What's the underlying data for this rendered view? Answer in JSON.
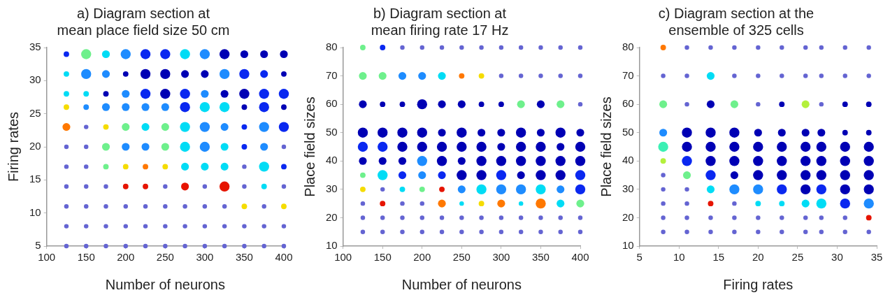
{
  "chart_data": [
    {
      "type": "bubble",
      "title": "a) Diagram section at\nmean place field size 50 cm",
      "xlabel": "Number of neurons",
      "ylabel": "Firing rates",
      "marker": "circle",
      "grid": false,
      "xlim": [
        100,
        400
      ],
      "xticks": [
        100,
        150,
        200,
        250,
        300,
        350,
        400
      ],
      "ylim": [
        5,
        35
      ],
      "yticks": [
        5,
        10,
        15,
        20,
        25,
        30,
        35
      ],
      "x": [
        125,
        150,
        175,
        200,
        225,
        250,
        275,
        300,
        325,
        350,
        375,
        400
      ],
      "series": [
        {
          "values": [
            34,
            34,
            34,
            34,
            34,
            34,
            34,
            34,
            34,
            34,
            34,
            34
          ],
          "sizes": [
            0.3,
            1,
            0.6,
            1,
            1,
            1,
            1,
            1,
            1,
            0.6,
            0.6,
            0.6
          ],
          "colors": [
            "#0a28f0",
            "#6ef08c",
            "#00dcf5",
            "#1e8cff",
            "#0a28f0",
            "#0a28f0",
            "#00dcf5",
            "#1e8cff",
            "#0000b4",
            "#0000b4",
            "#0000b4",
            "#0000b4"
          ]
        },
        {
          "values": [
            31,
            31,
            31,
            31,
            31,
            31,
            31,
            31,
            31,
            31,
            31,
            31
          ],
          "sizes": [
            0.3,
            1,
            0.6,
            0.3,
            1,
            1,
            0.6,
            0.6,
            1,
            1,
            0.6,
            0.3
          ],
          "colors": [
            "#00dcf5",
            "#1e8cff",
            "#1e8cff",
            "#0000b4",
            "#0000b4",
            "#0000b4",
            "#0000b4",
            "#0000b4",
            "#1e8cff",
            "#0a28f0",
            "#0a28f0",
            "#0000b4"
          ]
        },
        {
          "values": [
            28,
            28,
            28,
            28,
            28,
            28,
            28,
            28,
            28,
            28,
            28,
            28
          ],
          "sizes": [
            0.3,
            0.3,
            0.3,
            0.6,
            1,
            1,
            1,
            0.6,
            0.6,
            1,
            1,
            1
          ],
          "colors": [
            "#00dcf5",
            "#00dcf5",
            "#0000b4",
            "#1e8cff",
            "#0a28f0",
            "#0000b4",
            "#0a28f0",
            "#1e8cff",
            "#0000b4",
            "#0000b4",
            "#0a28f0",
            "#0a28f0"
          ]
        },
        {
          "values": [
            26,
            26,
            26,
            26,
            26,
            26,
            26,
            26,
            26,
            26,
            26,
            26
          ],
          "sizes": [
            0.3,
            0.3,
            0.6,
            0.6,
            0.6,
            0.6,
            1,
            1,
            1,
            0.3,
            1,
            0.3
          ],
          "colors": [
            "#f5dc00",
            "#1e8cff",
            "#1e8cff",
            "#1e8cff",
            "#1e8cff",
            "#1e8cff",
            "#0a28f0",
            "#00dcf5",
            "#00dcf5",
            "#0000b4",
            "#0a28f0",
            "#0000b4"
          ]
        },
        {
          "values": [
            23,
            23,
            23,
            23,
            23,
            23,
            23,
            23,
            23,
            23,
            23,
            23
          ],
          "sizes": [
            0.6,
            0.2,
            0.3,
            0.6,
            0.6,
            0.6,
            1,
            1,
            0.6,
            0.3,
            1,
            1
          ],
          "colors": [
            "#ff7800",
            "#6464d2",
            "#f5dc00",
            "#6ef08c",
            "#00dcf5",
            "#6ef08c",
            "#00dcf5",
            "#1e8cff",
            "#1e8cff",
            "#0a28f0",
            "#1e8cff",
            "#0a28f0"
          ]
        },
        {
          "values": [
            20,
            20,
            20,
            20,
            20,
            20,
            20,
            20,
            20,
            20,
            20,
            20
          ],
          "sizes": [
            0.2,
            0.2,
            0.6,
            0.6,
            0.6,
            0.6,
            1,
            1,
            0.6,
            0.3,
            0.6,
            0.2
          ],
          "colors": [
            "#6464d2",
            "#6464d2",
            "#6ef08c",
            "#1e8cff",
            "#1e8cff",
            "#6ef08c",
            "#00dcf5",
            "#1e8cff",
            "#00dcf5",
            "#0a28f0",
            "#1e8cff",
            "#6464d2"
          ]
        },
        {
          "values": [
            17,
            17,
            17,
            17,
            17,
            17,
            17,
            17,
            17,
            17,
            17,
            17
          ],
          "sizes": [
            0.2,
            0.2,
            0.3,
            0.3,
            0.3,
            0.3,
            0.6,
            0.6,
            0.6,
            0.2,
            1,
            0.3
          ],
          "colors": [
            "#6464d2",
            "#6464d2",
            "#6ef08c",
            "#f5dc00",
            "#ff7800",
            "#f5dc00",
            "#00dcf5",
            "#00dcf5",
            "#00dcf5",
            "#6464d2",
            "#00dcf5",
            "#0a28f0"
          ]
        },
        {
          "values": [
            14,
            14,
            14,
            14,
            14,
            14,
            14,
            14,
            14,
            14,
            14,
            14
          ],
          "sizes": [
            0.2,
            0.2,
            0.2,
            0.3,
            0.3,
            0.2,
            0.6,
            0.2,
            1,
            0.2,
            0.3,
            0.2
          ],
          "colors": [
            "#6464d2",
            "#6464d2",
            "#6464d2",
            "#e61400",
            "#e61400",
            "#6464d2",
            "#e61400",
            "#6464d2",
            "#e61400",
            "#6464d2",
            "#00dcf5",
            "#6464d2"
          ]
        },
        {
          "values": [
            11,
            11,
            11,
            11,
            11,
            11,
            11,
            11,
            11,
            11,
            11,
            11
          ],
          "sizes": [
            0.2,
            0.2,
            0.2,
            0.2,
            0.2,
            0.2,
            0.2,
            0.2,
            0.2,
            0.3,
            0.2,
            0.3
          ],
          "colors": [
            "#6464d2",
            "#6464d2",
            "#6464d2",
            "#6464d2",
            "#6464d2",
            "#6464d2",
            "#6464d2",
            "#6464d2",
            "#6464d2",
            "#f5dc00",
            "#6464d2",
            "#f5dc00"
          ]
        },
        {
          "values": [
            8,
            8,
            8,
            8,
            8,
            8,
            8,
            8,
            8,
            8,
            8,
            8
          ],
          "sizes": [
            0.2,
            0.2,
            0.2,
            0.2,
            0.2,
            0.2,
            0.2,
            0.2,
            0.2,
            0.2,
            0.2,
            0.2
          ],
          "colors": [
            "#6464d2",
            "#6464d2",
            "#6464d2",
            "#6464d2",
            "#6464d2",
            "#6464d2",
            "#6464d2",
            "#6464d2",
            "#6464d2",
            "#6464d2",
            "#6464d2",
            "#6464d2"
          ]
        },
        {
          "values": [
            5,
            5,
            5,
            5,
            5,
            5,
            5,
            5,
            5,
            5,
            5,
            5
          ],
          "sizes": [
            0.2,
            0.2,
            0.2,
            0.2,
            0.2,
            0.2,
            0.2,
            0.2,
            0.2,
            0.2,
            0.2,
            0.2
          ],
          "colors": [
            "#6464d2",
            "#6464d2",
            "#6464d2",
            "#6464d2",
            "#6464d2",
            "#6464d2",
            "#6464d2",
            "#6464d2",
            "#6464d2",
            "#6464d2",
            "#6464d2",
            "#6464d2"
          ]
        }
      ]
    },
    {
      "type": "bubble",
      "title": "b) Diagram section at\nmean firing rate 17 Hz",
      "xlabel": "Number of neurons",
      "ylabel": "Place field sizes",
      "marker": "circle",
      "grid": false,
      "xlim": [
        100,
        400
      ],
      "xticks": [
        100,
        150,
        200,
        250,
        300,
        350,
        400
      ],
      "ylim": [
        10,
        80
      ],
      "yticks": [
        10,
        20,
        30,
        40,
        50,
        60,
        70,
        80
      ],
      "x": [
        125,
        150,
        175,
        200,
        225,
        250,
        275,
        300,
        325,
        350,
        375,
        400
      ],
      "series": [
        {
          "values": [
            80,
            80,
            80,
            80,
            80,
            80,
            80,
            80,
            80,
            80,
            80,
            80
          ],
          "sizes": [
            0.3,
            0.3,
            0.2,
            0.2,
            0.2,
            0.2,
            0.2,
            0.2,
            0.2,
            0.2,
            0.2,
            0.2
          ],
          "colors": [
            "#6ef08c",
            "#0a28f0",
            "#6464d2",
            "#6464d2",
            "#6464d2",
            "#6464d2",
            "#6464d2",
            "#6464d2",
            "#6464d2",
            "#6464d2",
            "#6464d2",
            "#6464d2"
          ]
        },
        {
          "values": [
            70,
            70,
            70,
            70,
            70,
            70,
            70,
            70,
            70,
            70,
            70,
            70
          ],
          "sizes": [
            0.6,
            0.6,
            0.6,
            0.6,
            0.6,
            0.3,
            0.3,
            0.2,
            0.2,
            0.2,
            0.2,
            0.2
          ],
          "colors": [
            "#6ef08c",
            "#6ef08c",
            "#1e8cff",
            "#1e8cff",
            "#00dcf5",
            "#ff7800",
            "#f5dc00",
            "#6464d2",
            "#6464d2",
            "#6464d2",
            "#6464d2",
            "#6464d2"
          ]
        },
        {
          "values": [
            60,
            60,
            60,
            60,
            60,
            60,
            60,
            60,
            60,
            60,
            60,
            60
          ],
          "sizes": [
            0.6,
            0.3,
            0.3,
            1,
            0.6,
            0.6,
            0.3,
            0.3,
            0.6,
            0.6,
            0.6,
            0.2
          ],
          "colors": [
            "#0000b4",
            "#0000b4",
            "#0000b4",
            "#0000b4",
            "#0000b4",
            "#0000b4",
            "#0000b4",
            "#0000b4",
            "#6ef08c",
            "#0000b4",
            "#6ef08c",
            "#6464d2"
          ]
        },
        {
          "values": [
            50,
            50,
            50,
            50,
            50,
            50,
            50,
            50,
            50,
            50,
            50,
            50
          ],
          "sizes": [
            1,
            1,
            1,
            1,
            0.6,
            1,
            0.6,
            0.6,
            1,
            0.6,
            1,
            0.6
          ],
          "colors": [
            "#0000b4",
            "#0000b4",
            "#0000b4",
            "#0000b4",
            "#0000b4",
            "#0000b4",
            "#0000b4",
            "#0000b4",
            "#0000b4",
            "#0000b4",
            "#0000b4",
            "#0000b4"
          ]
        },
        {
          "values": [
            45,
            45,
            45,
            45,
            45,
            45,
            45,
            45,
            45,
            45,
            45,
            45
          ],
          "sizes": [
            1,
            1,
            1,
            1,
            1,
            1,
            1,
            0.6,
            1,
            1,
            0.6,
            1
          ],
          "colors": [
            "#0a28f0",
            "#0a28f0",
            "#0000b4",
            "#0000b4",
            "#0000b4",
            "#0000b4",
            "#0000b4",
            "#0000b4",
            "#0000b4",
            "#0000b4",
            "#0000b4",
            "#0000b4"
          ]
        },
        {
          "values": [
            40,
            40,
            40,
            40,
            40,
            40,
            40,
            40,
            40,
            40,
            40,
            40
          ],
          "sizes": [
            0.6,
            0.6,
            0.6,
            1,
            1,
            0.6,
            1,
            1,
            1,
            1,
            1,
            1
          ],
          "colors": [
            "#0000b4",
            "#0000b4",
            "#0000b4",
            "#1e8cff",
            "#0000b4",
            "#0000b4",
            "#0000b4",
            "#0000b4",
            "#0000b4",
            "#0000b4",
            "#0000b4",
            "#0000b4"
          ]
        },
        {
          "values": [
            35,
            35,
            35,
            35,
            35,
            35,
            35,
            35,
            35,
            35,
            35,
            35
          ],
          "sizes": [
            0.3,
            1,
            0.6,
            0.6,
            0.6,
            1,
            1,
            1,
            0.6,
            1,
            1,
            1
          ],
          "colors": [
            "#6ef08c",
            "#00dcf5",
            "#0a28f0",
            "#1e8cff",
            "#0a28f0",
            "#0000b4",
            "#0000b4",
            "#0a28f0",
            "#0000b4",
            "#0000b4",
            "#0000b4",
            "#0a28f0"
          ]
        },
        {
          "values": [
            30,
            30,
            30,
            30,
            30,
            30,
            30,
            30,
            30,
            30,
            30,
            30
          ],
          "sizes": [
            0.3,
            0.2,
            0.3,
            0.3,
            0.3,
            0.6,
            1,
            1,
            1,
            1,
            0.6,
            1
          ],
          "colors": [
            "#f5dc00",
            "#6464d2",
            "#00dcf5",
            "#6ef08c",
            "#e61400",
            "#1e8cff",
            "#00dcf5",
            "#1e8cff",
            "#1e8cff",
            "#00dcf5",
            "#1e8cff",
            "#0a28f0"
          ]
        },
        {
          "values": [
            25,
            25,
            25,
            25,
            25,
            25,
            25,
            25,
            25,
            25,
            25,
            25
          ],
          "sizes": [
            0.2,
            0.3,
            0.2,
            0.2,
            0.6,
            0.2,
            0.3,
            0.6,
            0.2,
            1,
            0.6,
            0.6
          ],
          "colors": [
            "#6464d2",
            "#e61400",
            "#6464d2",
            "#6464d2",
            "#ff7800",
            "#00dcf5",
            "#f5dc00",
            "#ff7800",
            "#00dcf5",
            "#ff7800",
            "#00dcf5",
            "#6ef08c"
          ]
        },
        {
          "values": [
            20,
            20,
            20,
            20,
            20,
            20,
            20,
            20,
            20,
            20,
            20,
            20
          ],
          "sizes": [
            0.2,
            0.2,
            0.2,
            0.2,
            0.2,
            0.2,
            0.2,
            0.2,
            0.2,
            0.2,
            0.2,
            0.2
          ],
          "colors": [
            "#6464d2",
            "#6464d2",
            "#6464d2",
            "#6464d2",
            "#6464d2",
            "#6464d2",
            "#6464d2",
            "#6464d2",
            "#6464d2",
            "#6464d2",
            "#6464d2",
            "#6464d2"
          ]
        },
        {
          "values": [
            15,
            15,
            15,
            15,
            15,
            15,
            15,
            15,
            15,
            15,
            15,
            15
          ],
          "sizes": [
            0.2,
            0.2,
            0.2,
            0.2,
            0.2,
            0.2,
            0.2,
            0.2,
            0.2,
            0.2,
            0.2,
            0.2
          ],
          "colors": [
            "#6464d2",
            "#6464d2",
            "#6464d2",
            "#6464d2",
            "#6464d2",
            "#6464d2",
            "#6464d2",
            "#6464d2",
            "#6464d2",
            "#6464d2",
            "#6464d2",
            "#6464d2"
          ]
        }
      ]
    },
    {
      "type": "bubble",
      "title": "c) Diagram section at the\nensemble of 325 cells",
      "xlabel": "Firing rates",
      "ylabel": "Place field sizes",
      "marker": "circle",
      "grid": false,
      "xlim": [
        5,
        35
      ],
      "xticks": [
        5,
        10,
        15,
        20,
        25,
        30,
        35
      ],
      "ylim": [
        10,
        80
      ],
      "yticks": [
        10,
        20,
        30,
        40,
        50,
        60,
        70,
        80
      ],
      "x": [
        8,
        11,
        14,
        17,
        20,
        23,
        26,
        28,
        31,
        34
      ],
      "series": [
        {
          "values": [
            80,
            80,
            80,
            80,
            80,
            80,
            80,
            80,
            80,
            80
          ],
          "sizes": [
            0.3,
            0.2,
            0.2,
            0.2,
            0.2,
            0.2,
            0.2,
            0.2,
            0.2,
            0.2
          ],
          "colors": [
            "#ff7800",
            "#6464d2",
            "#6464d2",
            "#6464d2",
            "#6464d2",
            "#6464d2",
            "#6464d2",
            "#6464d2",
            "#6464d2",
            "#6464d2"
          ]
        },
        {
          "values": [
            70,
            70,
            70,
            70,
            70,
            70,
            70,
            70,
            70,
            70
          ],
          "sizes": [
            0.2,
            0.2,
            0.6,
            0.2,
            0.2,
            0.2,
            0.2,
            0.2,
            0.2,
            0.2
          ],
          "colors": [
            "#6464d2",
            "#6464d2",
            "#00dcf5",
            "#6464d2",
            "#6464d2",
            "#6464d2",
            "#6464d2",
            "#6464d2",
            "#6464d2",
            "#6464d2"
          ]
        },
        {
          "values": [
            60,
            60,
            60,
            60,
            60,
            60,
            60,
            60,
            60,
            60
          ],
          "sizes": [
            0.6,
            0.2,
            0.6,
            0.6,
            0.2,
            0.3,
            0.6,
            0.2,
            0.3,
            0.3
          ],
          "colors": [
            "#6ef08c",
            "#6464d2",
            "#0000b4",
            "#6ef08c",
            "#6464d2",
            "#0000b4",
            "#b4f03c",
            "#6464d2",
            "#0000b4",
            "#0000b4"
          ]
        },
        {
          "values": [
            50,
            50,
            50,
            50,
            50,
            50,
            50,
            50,
            50,
            50
          ],
          "sizes": [
            0.6,
            1,
            1,
            1,
            0.6,
            0.6,
            0.6,
            0.6,
            0.3,
            0.3
          ],
          "colors": [
            "#1e8cff",
            "#0000b4",
            "#0000b4",
            "#0000b4",
            "#0000b4",
            "#0000b4",
            "#0000b4",
            "#0000b4",
            "#0000b4",
            "#0000b4"
          ]
        },
        {
          "values": [
            45,
            45,
            45,
            45,
            45,
            45,
            45,
            45,
            45,
            45
          ],
          "sizes": [
            1,
            1,
            1,
            1,
            1,
            1,
            1,
            1,
            1,
            1
          ],
          "colors": [
            "#3cf0b4",
            "#0000b4",
            "#0000b4",
            "#0000b4",
            "#0000b4",
            "#0000b4",
            "#0000b4",
            "#0000b4",
            "#0000b4",
            "#0000b4"
          ]
        },
        {
          "values": [
            40,
            40,
            40,
            40,
            40,
            40,
            40,
            40,
            40,
            40
          ],
          "sizes": [
            0.3,
            1,
            1,
            1,
            1,
            1,
            1,
            1,
            1,
            1
          ],
          "colors": [
            "#b4f03c",
            "#0a28f0",
            "#0000b4",
            "#0000b4",
            "#0000b4",
            "#0000b4",
            "#0000b4",
            "#0000b4",
            "#0000b4",
            "#0000b4"
          ]
        },
        {
          "values": [
            35,
            35,
            35,
            35,
            35,
            35,
            35,
            35,
            35,
            35
          ],
          "sizes": [
            0.2,
            0.6,
            1,
            0.6,
            1,
            1,
            1,
            1,
            1,
            1
          ],
          "colors": [
            "#6464d2",
            "#6ef08c",
            "#0a28f0",
            "#0000b4",
            "#0000b4",
            "#0000b4",
            "#0000b4",
            "#0000b4",
            "#0000b4",
            "#0000b4"
          ]
        },
        {
          "values": [
            30,
            30,
            30,
            30,
            30,
            30,
            30,
            30,
            30,
            30
          ],
          "sizes": [
            0.2,
            0.2,
            0.6,
            1,
            1,
            1,
            1,
            1,
            1,
            1
          ],
          "colors": [
            "#6464d2",
            "#6464d2",
            "#00dcf5",
            "#1e8cff",
            "#1e8cff",
            "#0a28f0",
            "#0000b4",
            "#0a28f0",
            "#0000b4",
            "#0000b4"
          ]
        },
        {
          "values": [
            25,
            25,
            25,
            25,
            25,
            25,
            25,
            25,
            25,
            25
          ],
          "sizes": [
            0.2,
            0.2,
            0.3,
            0.2,
            0.3,
            0.3,
            0.6,
            1,
            1,
            1
          ],
          "colors": [
            "#6464d2",
            "#6464d2",
            "#e61400",
            "#6464d2",
            "#00dcf5",
            "#00dcf5",
            "#00dcf5",
            "#00dcf5",
            "#0a28f0",
            "#1e8cff"
          ]
        },
        {
          "values": [
            20,
            20,
            20,
            20,
            20,
            20,
            20,
            20,
            20,
            20
          ],
          "sizes": [
            0.2,
            0.2,
            0.2,
            0.2,
            0.2,
            0.2,
            0.2,
            0.2,
            0.2,
            0.3
          ],
          "colors": [
            "#6464d2",
            "#6464d2",
            "#6464d2",
            "#6464d2",
            "#6464d2",
            "#6464d2",
            "#6464d2",
            "#6464d2",
            "#6464d2",
            "#e61400"
          ]
        },
        {
          "values": [
            15,
            15,
            15,
            15,
            15,
            15,
            15,
            15,
            15,
            15
          ],
          "sizes": [
            0.2,
            0.2,
            0.2,
            0.2,
            0.2,
            0.2,
            0.2,
            0.2,
            0.2,
            0.2
          ],
          "colors": [
            "#6464d2",
            "#6464d2",
            "#6464d2",
            "#6464d2",
            "#6464d2",
            "#6464d2",
            "#6464d2",
            "#6464d2",
            "#6464d2",
            "#6464d2"
          ]
        }
      ]
    }
  ]
}
